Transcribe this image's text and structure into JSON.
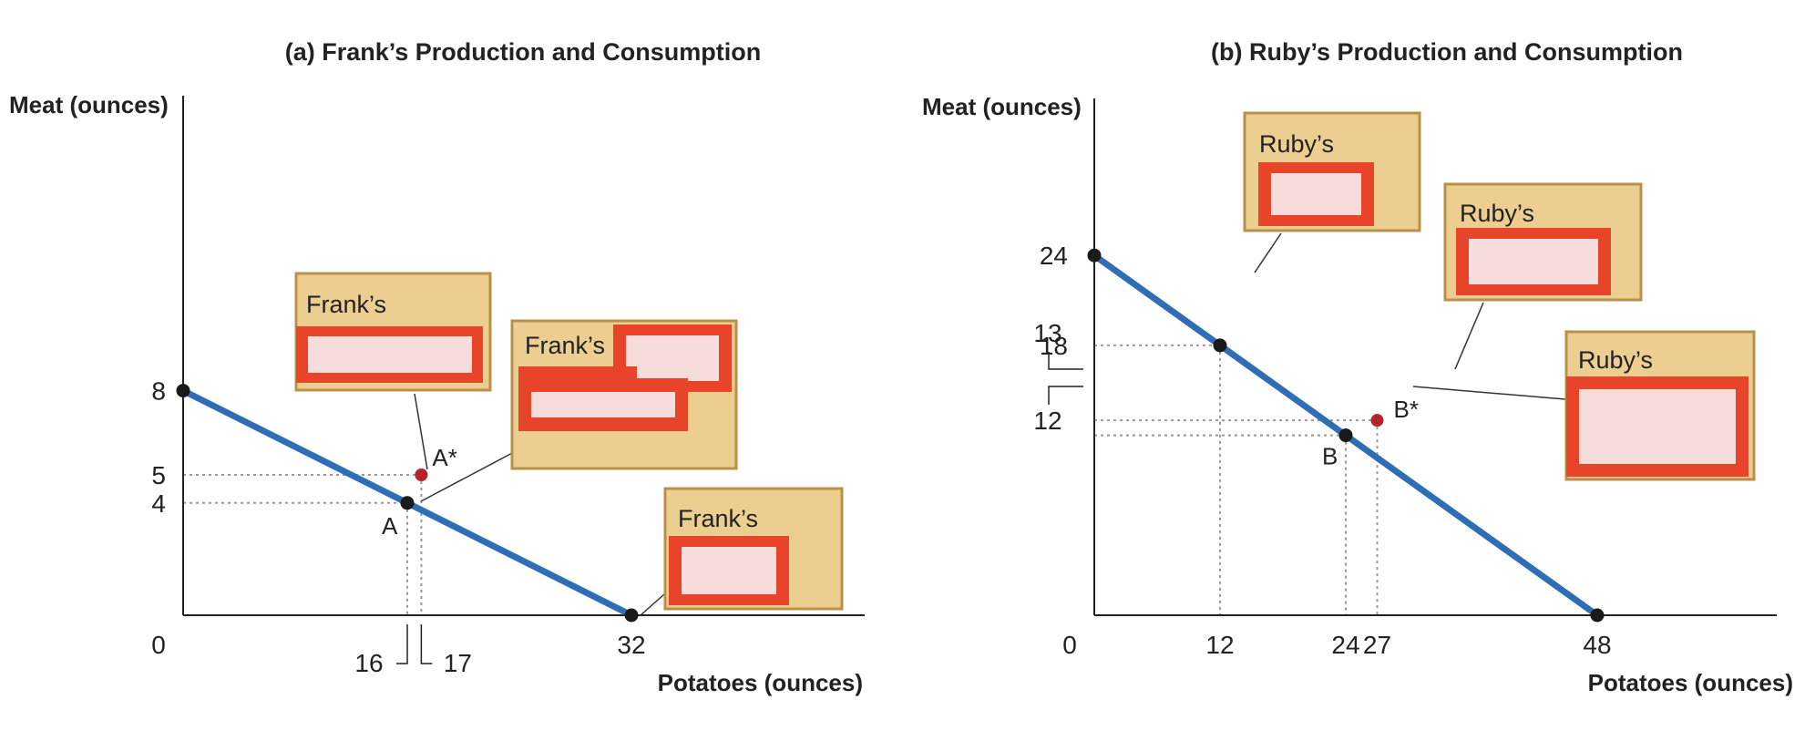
{
  "colors": {
    "line": "#2f6db5",
    "box_fill": "#ecce91",
    "box_stroke": "#b89048",
    "redact_stroke": "#e8442a",
    "redact_fill": "#f7dcdc",
    "point_black": "#1a1a1a",
    "point_red": "#b3242b",
    "guide": "#999999"
  },
  "chart_data": [
    {
      "type": "line",
      "title": "(a) Frank’s Production and Consumption",
      "xlabel": "Potatoes (ounces)",
      "ylabel": "Meat (ounces)",
      "origin_label": "0",
      "xlim": [
        0,
        44
      ],
      "ylim": [
        0,
        18
      ],
      "x_ticks": [
        {
          "value": 16,
          "label": "16"
        },
        {
          "value": 17,
          "label": "17"
        },
        {
          "value": 32,
          "label": "32"
        }
      ],
      "y_ticks": [
        {
          "value": 4,
          "label": "4"
        },
        {
          "value": 5,
          "label": "5"
        },
        {
          "value": 8,
          "label": "8"
        }
      ],
      "series": [
        {
          "x": [
            0,
            32
          ],
          "y": [
            8,
            0
          ]
        }
      ],
      "points": [
        {
          "label": "",
          "x": 0,
          "y": 8,
          "kind": "black"
        },
        {
          "label": "A",
          "x": 16,
          "y": 4,
          "kind": "black"
        },
        {
          "label": "A*",
          "x": 17,
          "y": 5,
          "kind": "red"
        },
        {
          "label": "",
          "x": 32,
          "y": 0,
          "kind": "black"
        }
      ],
      "annotations": [
        {
          "text": "Frank’s"
        },
        {
          "text": "Frank’s"
        },
        {
          "text": "Frank’s"
        }
      ]
    },
    {
      "type": "line",
      "title": "(b) Ruby’s Production and Consumption",
      "xlabel": "Potatoes (ounces)",
      "ylabel": "Meat (ounces)",
      "origin_label": "0",
      "xlim": [
        0,
        51
      ],
      "ylim": [
        0,
        27
      ],
      "x_ticks": [
        {
          "value": 12,
          "label": "12"
        },
        {
          "value": 24,
          "label": "24"
        },
        {
          "value": 27,
          "label": "27"
        },
        {
          "value": 48,
          "label": "48"
        }
      ],
      "y_ticks": [
        {
          "value": 12,
          "label": "12"
        },
        {
          "value": 13,
          "label": "13"
        },
        {
          "value": 18,
          "label": "18"
        },
        {
          "value": 24,
          "label": "24"
        }
      ],
      "series": [
        {
          "x": [
            0,
            48
          ],
          "y": [
            24,
            0
          ]
        }
      ],
      "points": [
        {
          "label": "",
          "x": 0,
          "y": 24,
          "kind": "black"
        },
        {
          "label": "",
          "x": 12,
          "y": 18,
          "kind": "black"
        },
        {
          "label": "B",
          "x": 24,
          "y": 12,
          "kind": "black"
        },
        {
          "label": "B*",
          "x": 27,
          "y": 13,
          "kind": "red"
        },
        {
          "label": "",
          "x": 48,
          "y": 0,
          "kind": "black"
        }
      ],
      "annotations": [
        {
          "text": "Ruby’s"
        },
        {
          "text": "Ruby’s"
        },
        {
          "text": "Ruby’s"
        }
      ]
    }
  ]
}
